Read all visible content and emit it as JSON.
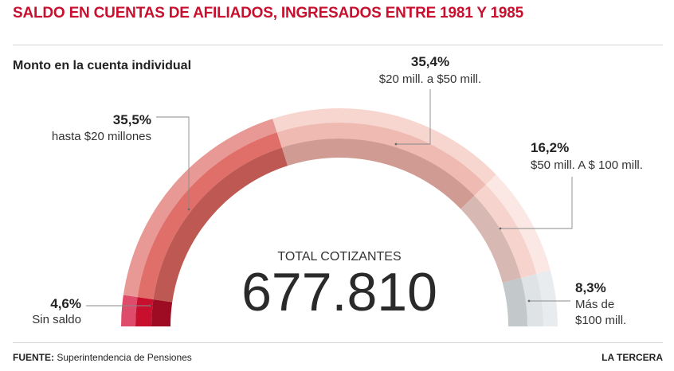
{
  "header": {
    "title": "SALDO EN CUENTAS DE AFILIADOS, INGRESADOS ENTRE 1981 Y 1985",
    "subtitle": "Monto en la cuenta individual"
  },
  "footer": {
    "source_prefix": "FUENTE:",
    "source_text": "Superintendencia de Pensiones",
    "brand": "LA TERCERA"
  },
  "chart_data": {
    "type": "pie",
    "shape": "semicircle",
    "total_label": "TOTAL COTIZANTES",
    "total_value": "677.810",
    "slices": [
      {
        "label": "Sin saldo",
        "value": 4.6,
        "value_text": "4,6%",
        "color_outer": "#df4b6b",
        "color_inner": "#c8102e",
        "color_shade": "#9e0c24"
      },
      {
        "label": "hasta $20 millones",
        "value": 35.5,
        "value_text": "35,5%",
        "color_outer": "#e99995",
        "color_inner": "#e06f69",
        "color_shade": "#bd5852"
      },
      {
        "label": "$20 mill. a $50 mill.",
        "value": 35.4,
        "value_text": "35,4%",
        "color_outer": "#f7d6d0",
        "color_inner": "#efbab1",
        "color_shade": "#cf9b93"
      },
      {
        "label": "$50  mill. A $ 100 mill.",
        "value": 16.2,
        "value_text": "16,2%",
        "color_outer": "#fbe7e3",
        "color_inner": "#f6d4cd",
        "color_shade": "#d8b8b2"
      },
      {
        "label": "Más de|$100 mill.",
        "value": 8.3,
        "value_text": "8,3%",
        "color_outer": "#e9ecee",
        "color_inner": "#dfe3e6",
        "color_shade": "#c3c8cb"
      }
    ]
  }
}
